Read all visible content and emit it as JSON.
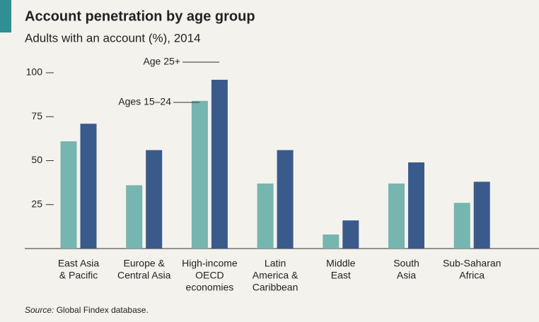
{
  "chart_data": {
    "type": "bar",
    "title": "Account penetration by age group",
    "subtitle": "Adults with an account (%), 2014",
    "categories": [
      [
        "East Asia",
        "& Pacific"
      ],
      [
        "Europe &",
        "Central Asia"
      ],
      [
        "High-income",
        "OECD",
        "economies"
      ],
      [
        "Latin",
        "America &",
        "Caribbean"
      ],
      [
        "Middle",
        "East"
      ],
      [
        "South",
        "Asia"
      ],
      [
        "Sub-Saharan",
        "Africa"
      ]
    ],
    "series": [
      {
        "name": "Ages 15–24",
        "color": "#76b5b0",
        "values": [
          61,
          36,
          84,
          37,
          8,
          37,
          26
        ]
      },
      {
        "name": "Age 25+",
        "color": "#3b5a8c",
        "values": [
          71,
          56,
          96,
          56,
          16,
          49,
          38
        ]
      }
    ],
    "ylim": [
      0,
      100
    ],
    "yticks": [
      25,
      50,
      75,
      100
    ],
    "source_label": "Source:",
    "source_text": "Global Findex database."
  }
}
